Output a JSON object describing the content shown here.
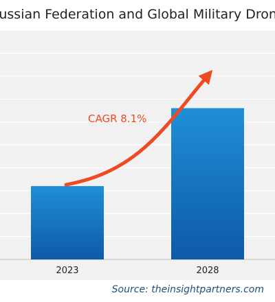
{
  "chart_data": {
    "type": "bar",
    "title": "Russian Federation and Global Military Drone Market",
    "categories": [
      "2023",
      "2028"
    ],
    "values": [
      32,
      66
    ],
    "ylim": [
      0,
      100
    ],
    "grid": true,
    "annotation": "CAGR 8.1%",
    "xlabel": "",
    "ylabel": ""
  },
  "source_text": "Source: theinsightpartners.com",
  "colors": {
    "bar_top": "#1f8fd6",
    "bar_bottom": "#0d5aa8",
    "arrow": "#ee4b23",
    "annotation": "#ee4b23",
    "grid": "#ffffff",
    "panel": "#f1f1f1"
  }
}
